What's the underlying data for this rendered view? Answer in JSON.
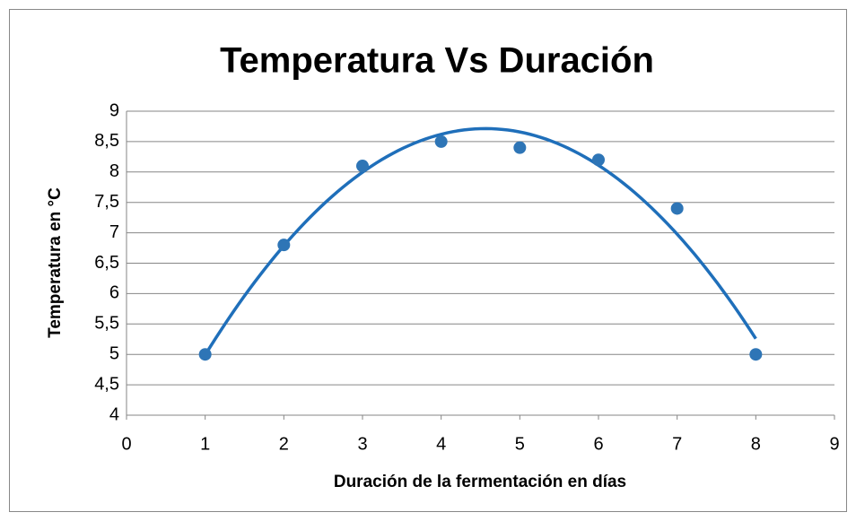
{
  "chart_data": {
    "type": "scatter",
    "title": "Temperatura Vs Duración",
    "x_label": "Duración de la fermentación en días",
    "y_label": "Temperatura en °C",
    "x": [
      1,
      2,
      3,
      4,
      5,
      6,
      7,
      8
    ],
    "values": [
      5,
      6.8,
      8.1,
      8.5,
      8.4,
      8.2,
      7.4,
      5
    ],
    "color": "#2e75b6",
    "trendline": "polynomial",
    "trendline_order": 2,
    "trendline_color": "#1f6fba",
    "xlim": [
      0,
      9
    ],
    "xticks": [
      0,
      1,
      2,
      3,
      4,
      5,
      6,
      7,
      8,
      9
    ],
    "ylim": [
      4,
      9
    ],
    "yticks": [
      4,
      {
        "value": 4.5,
        "label": "4,5"
      },
      5,
      {
        "value": 5.5,
        "label": "5,5"
      },
      6,
      {
        "value": 6.5,
        "label": "6,5"
      },
      7,
      {
        "value": 7.5,
        "label": "7,5"
      },
      8,
      {
        "value": 8.5,
        "label": "8,5"
      },
      9
    ],
    "grid": true
  }
}
